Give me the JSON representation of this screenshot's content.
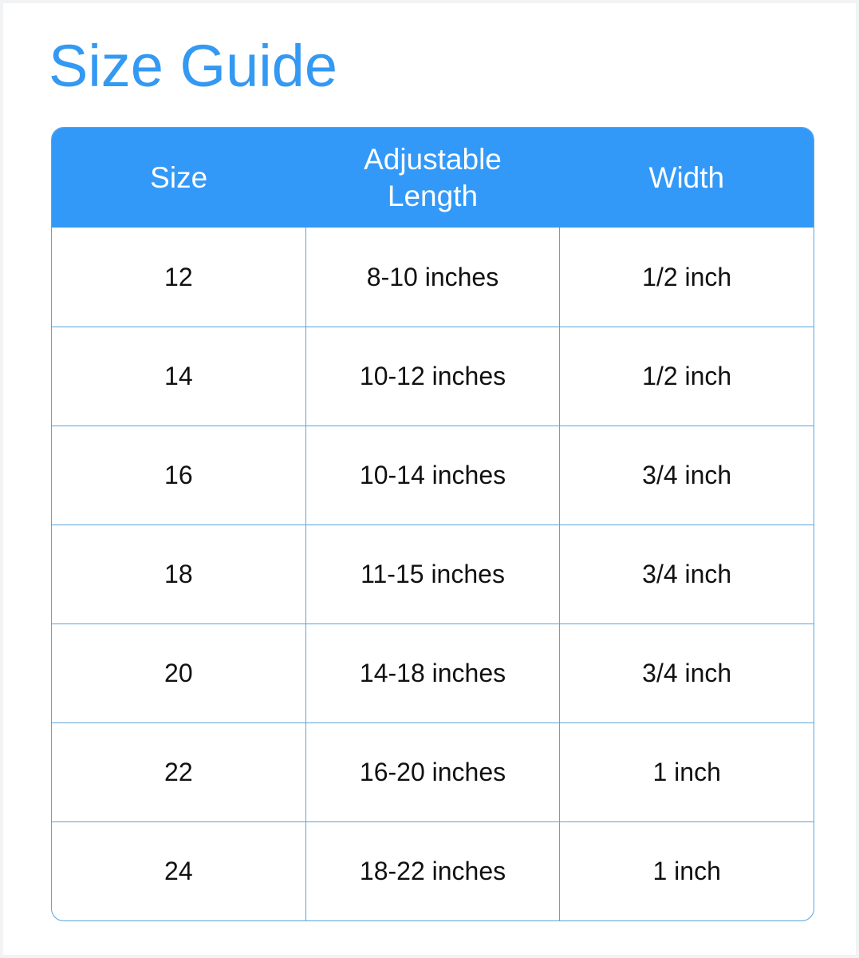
{
  "title": "Size Guide",
  "colors": {
    "accent": "#3399f8",
    "grid": "#5aa5dc"
  },
  "table": {
    "headers": [
      "Size",
      "Adjustable Length",
      "Width"
    ],
    "rows": [
      [
        "12",
        "8-10 inches",
        "1/2 inch"
      ],
      [
        "14",
        "10-12 inches",
        "1/2 inch"
      ],
      [
        "16",
        "10-14 inches",
        "3/4 inch"
      ],
      [
        "18",
        "11-15 inches",
        "3/4 inch"
      ],
      [
        "20",
        "14-18 inches",
        "3/4 inch"
      ],
      [
        "22",
        "16-20 inches",
        "1 inch"
      ],
      [
        "24",
        "18-22 inches",
        "1 inch"
      ]
    ]
  }
}
